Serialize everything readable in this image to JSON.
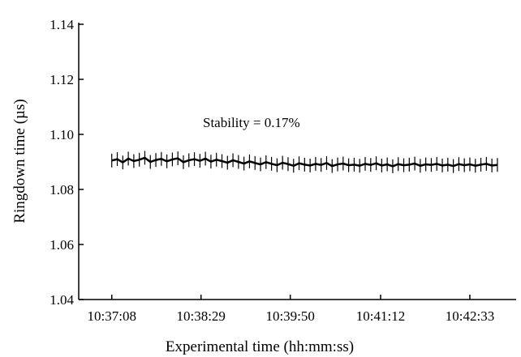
{
  "chart_data": {
    "type": "errorline",
    "xlabel": "Experimental time (hh:mm:ss)",
    "ylabel": "Ringdown time (µs)",
    "annotation": "Stability = 0.17%",
    "xlim": [
      "10:36:38",
      "10:43:15"
    ],
    "xticks": [
      "10:37:08",
      "10:38:29",
      "10:39:50",
      "10:41:12",
      "10:42:33"
    ],
    "ylim": [
      1.04,
      1.14
    ],
    "yticks": [
      1.04,
      1.06,
      1.08,
      {
        "value": 1.1,
        "label": "1.10"
      },
      1.12,
      1.14
    ],
    "color": "#000000",
    "error": 0.0025,
    "x": [
      "10:37:08",
      "10:37:13",
      "10:37:18",
      "10:37:23",
      "10:37:28",
      "10:37:33",
      "10:37:38",
      "10:37:43",
      "10:37:48",
      "10:37:53",
      "10:37:58",
      "10:38:03",
      "10:38:08",
      "10:38:13",
      "10:38:18",
      "10:38:23",
      "10:38:28",
      "10:38:33",
      "10:38:38",
      "10:38:43",
      "10:38:48",
      "10:38:53",
      "10:38:58",
      "10:39:03",
      "10:39:08",
      "10:39:13",
      "10:39:18",
      "10:39:23",
      "10:39:28",
      "10:39:33",
      "10:39:38",
      "10:39:43",
      "10:39:48",
      "10:39:53",
      "10:39:58",
      "10:40:03",
      "10:40:08",
      "10:40:13",
      "10:40:18",
      "10:40:23",
      "10:40:28",
      "10:40:33",
      "10:40:38",
      "10:40:43",
      "10:40:48",
      "10:40:53",
      "10:40:58",
      "10:41:03",
      "10:41:08",
      "10:41:13",
      "10:41:18",
      "10:41:23",
      "10:41:28",
      "10:41:33",
      "10:41:38",
      "10:41:43",
      "10:41:48",
      "10:41:53",
      "10:41:58",
      "10:42:03",
      "10:42:08",
      "10:42:13",
      "10:42:18",
      "10:42:23",
      "10:42:28",
      "10:42:33",
      "10:42:38",
      "10:42:43",
      "10:42:48",
      "10:42:53",
      "10:42:58"
    ],
    "values": [
      1.0905,
      1.091,
      1.0898,
      1.0912,
      1.0903,
      1.0908,
      1.0915,
      1.09,
      1.0907,
      1.0911,
      1.0902,
      1.0909,
      1.0913,
      1.0899,
      1.0906,
      1.091,
      1.0904,
      1.0912,
      1.0901,
      1.0908,
      1.0903,
      1.0897,
      1.0906,
      1.09,
      1.0894,
      1.0902,
      1.0896,
      1.0891,
      1.0899,
      1.0893,
      1.0888,
      1.0897,
      1.0892,
      1.0886,
      1.0895,
      1.089,
      1.0887,
      1.0893,
      1.0889,
      1.0896,
      1.0885,
      1.0891,
      1.0894,
      1.0888,
      1.089,
      1.0886,
      1.0893,
      1.0889,
      1.0895,
      1.0887,
      1.0891,
      1.0884,
      1.0892,
      1.0888,
      1.089,
      1.0894,
      1.0886,
      1.0891,
      1.0889,
      1.0893,
      1.0887,
      1.089,
      1.0885,
      1.0892,
      1.0888,
      1.0891,
      1.0886,
      1.089,
      1.0893,
      1.0887,
      1.0889
    ]
  }
}
